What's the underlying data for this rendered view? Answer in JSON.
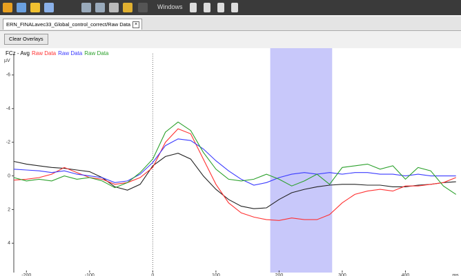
{
  "toolbar": {
    "windows_label": "Windows"
  },
  "tab": {
    "title": "ERN_FINALavec33_Global_control_correct/Raw Data"
  },
  "button": {
    "label": "Clear Overlays"
  },
  "chart_data": {
    "type": "line",
    "channel_label": "FCz - Avg",
    "y_label": "µV",
    "x_label": "ms",
    "x": [
      -220,
      -200,
      -180,
      -160,
      -140,
      -120,
      -100,
      -80,
      -60,
      -40,
      -20,
      0,
      20,
      40,
      60,
      80,
      100,
      120,
      140,
      160,
      180,
      200,
      220,
      240,
      260,
      280,
      300,
      320,
      340,
      360,
      380,
      400,
      420,
      440,
      460,
      480
    ],
    "series": [
      {
        "name": null,
        "color": "#222222",
        "values": [
          -0.86,
          -0.7,
          -0.6,
          -0.5,
          -0.45,
          -0.35,
          -0.25,
          0.1,
          0.65,
          0.85,
          0.5,
          -0.6,
          -1.15,
          -1.35,
          -1.0,
          0,
          0.8,
          1.4,
          1.8,
          1.95,
          1.9,
          1.4,
          1.0,
          0.8,
          0.65,
          0.55,
          0.5,
          0.5,
          0.55,
          0.55,
          0.65,
          0.65,
          0.55,
          0.5,
          0.4,
          0.35
        ]
      },
      {
        "name": "Raw Data",
        "color": "#ff3030",
        "values": [
          0.25,
          0.2,
          0.1,
          -0.1,
          -0.5,
          -0.2,
          0.1,
          0.2,
          0.5,
          0.4,
          0.1,
          -0.5,
          -2.0,
          -2.8,
          -2.5,
          -1,
          0.5,
          1.6,
          2.2,
          2.45,
          2.6,
          2.65,
          2.5,
          2.6,
          2.6,
          2.3,
          1.6,
          1.1,
          0.9,
          0.8,
          0.9,
          0.6,
          0.6,
          0.5,
          0.4,
          0.1
        ]
      },
      {
        "name": "Raw Data",
        "color": "#3a3aff",
        "values": [
          -0.4,
          -0.35,
          -0.3,
          -0.2,
          -0.3,
          -0.1,
          0,
          0.1,
          0.4,
          0.3,
          -0.1,
          -0.8,
          -1.8,
          -2.2,
          -2.1,
          -1.6,
          -0.9,
          -0.3,
          0.2,
          0.55,
          0.4,
          0.1,
          -0.1,
          -0.2,
          -0.1,
          -0.2,
          -0.1,
          -0.2,
          -0.2,
          -0.1,
          -0.1,
          0,
          -0.1,
          0,
          0,
          0
        ]
      },
      {
        "name": "Raw Data",
        "color": "#2aa02a",
        "values": [
          0.1,
          0.3,
          0.2,
          0.3,
          0,
          0.2,
          0.1,
          0.3,
          0.7,
          0.4,
          -0.2,
          -1.0,
          -2.6,
          -3.2,
          -2.7,
          -1.4,
          -0.4,
          0.2,
          0.3,
          0.2,
          -0.1,
          0.2,
          0.6,
          0.3,
          -0.1,
          0.5,
          -0.5,
          -0.6,
          -0.7,
          -0.4,
          -0.6,
          0.2,
          -0.5,
          -0.3,
          0.6,
          1.1
        ]
      }
    ],
    "xlim": [
      -220,
      488
    ],
    "xticks": [
      -200,
      -100,
      0,
      100,
      200,
      300,
      400
    ],
    "ylim": [
      -7.1,
      5.5
    ],
    "yticks": [
      -6,
      -4,
      -2,
      0,
      2,
      4
    ],
    "y_inverted": true,
    "zero_line": true,
    "highlight": {
      "range": [
        186,
        284
      ],
      "color": "#c8c8fa"
    }
  }
}
